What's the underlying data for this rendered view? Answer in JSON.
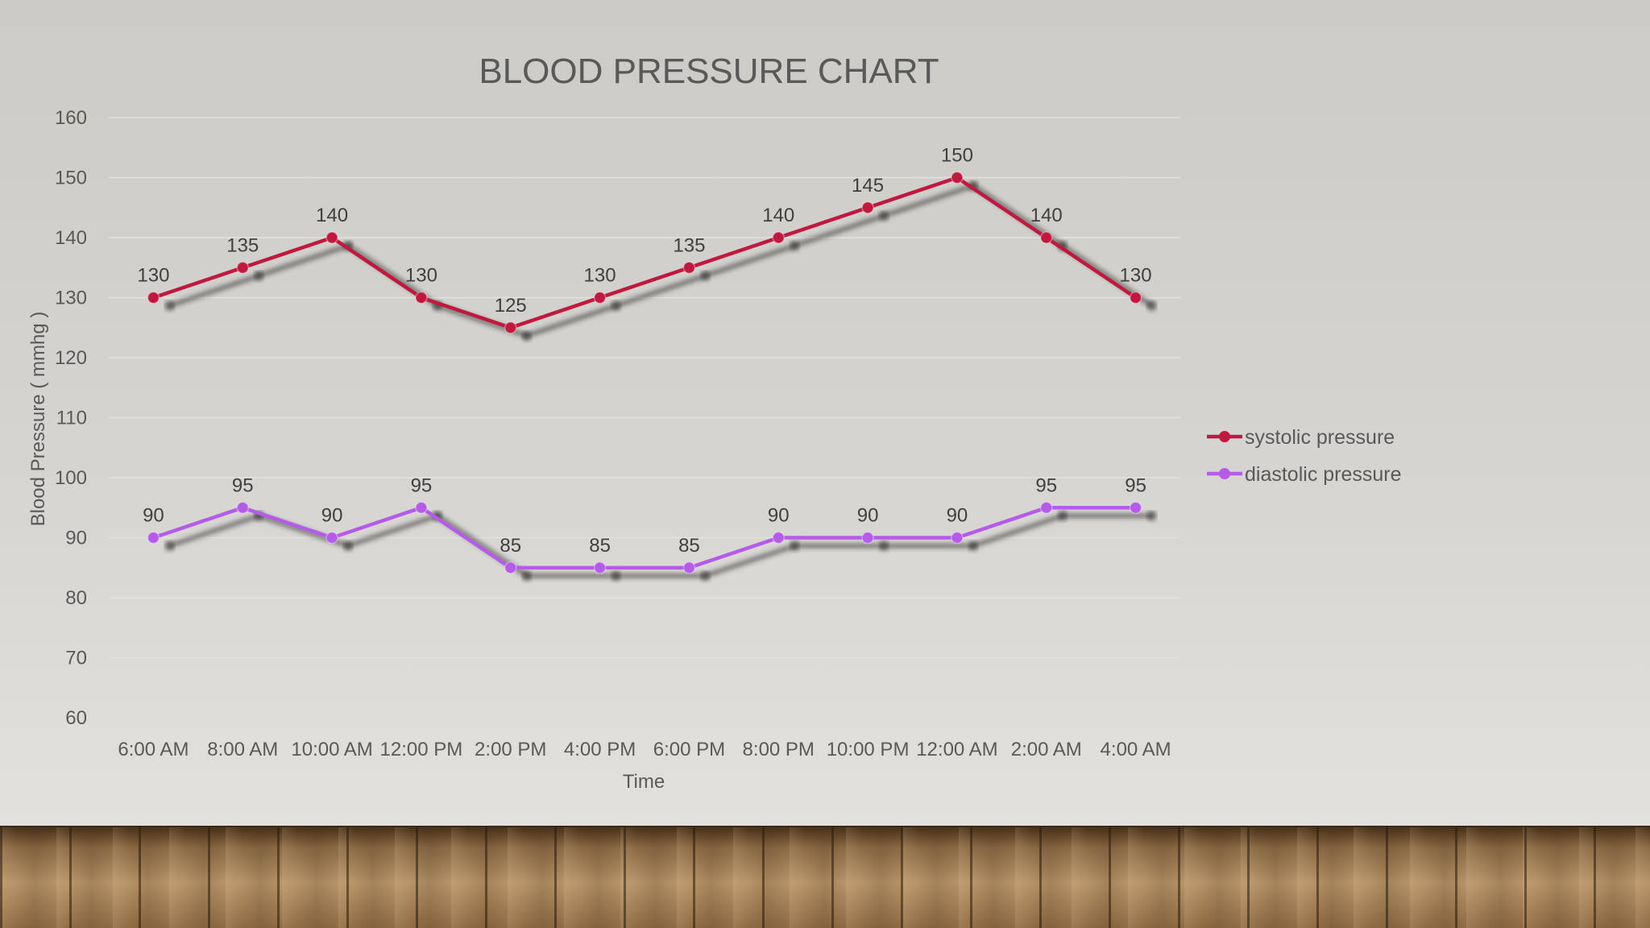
{
  "chart_data": {
    "type": "line",
    "title": "BLOOD PRESSURE CHART",
    "xlabel": "Time",
    "ylabel": "Blood Pressure ( mmhg )",
    "categories": [
      "6:00 AM",
      "8:00 AM",
      "10:00 AM",
      "12:00 PM",
      "2:00 PM",
      "4:00 PM",
      "6:00 PM",
      "8:00 PM",
      "10:00 PM",
      "12:00 AM",
      "2:00 AM",
      "4:00 AM"
    ],
    "series": [
      {
        "name": "systolic pressure",
        "color": "#c0193f",
        "values": [
          130,
          135,
          140,
          130,
          125,
          130,
          135,
          140,
          145,
          150,
          140,
          130
        ]
      },
      {
        "name": "diastolic pressure",
        "color": "#b45be8",
        "values": [
          90,
          95,
          90,
          95,
          85,
          85,
          85,
          90,
          90,
          90,
          95,
          95
        ]
      }
    ],
    "ylim": [
      60,
      160
    ],
    "yticks": [
      60,
      70,
      80,
      90,
      100,
      110,
      120,
      130,
      140,
      150,
      160
    ],
    "grid": true,
    "data_labels": true,
    "legend_position": "right"
  }
}
